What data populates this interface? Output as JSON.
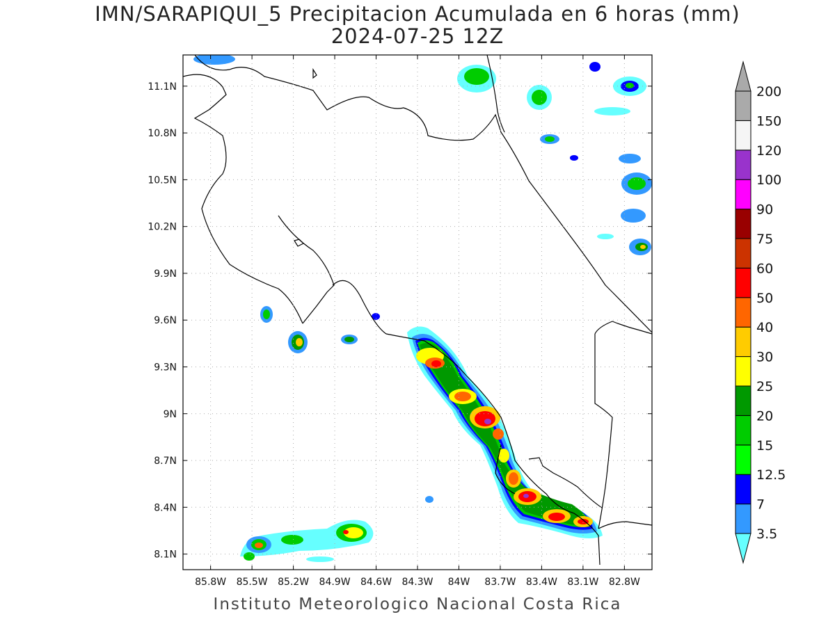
{
  "title": "IMN/SARAPIQUI_5 Precipitacion Acumulada en 6 horas (mm)",
  "subtitle": "2024-07-25 12Z",
  "credit": "Instituto Meteorologico Nacional Costa Rica",
  "map": {
    "lon_range": [
      -86.0,
      -82.6
    ],
    "lat_range": [
      8.0,
      11.3
    ],
    "lon_ticks": [
      {
        "value": -85.8,
        "label": "85.8W"
      },
      {
        "value": -85.5,
        "label": "85.5W"
      },
      {
        "value": -85.2,
        "label": "85.2W"
      },
      {
        "value": -84.9,
        "label": "84.9W"
      },
      {
        "value": -84.6,
        "label": "84.6W"
      },
      {
        "value": -84.3,
        "label": "84.3W"
      },
      {
        "value": -84.0,
        "label": "84W"
      },
      {
        "value": -83.7,
        "label": "83.7W"
      },
      {
        "value": -83.4,
        "label": "83.4W"
      },
      {
        "value": -83.1,
        "label": "83.1W"
      },
      {
        "value": -82.8,
        "label": "82.8W"
      }
    ],
    "lat_ticks": [
      {
        "value": 8.1,
        "label": "8.1N"
      },
      {
        "value": 8.4,
        "label": "8.4N"
      },
      {
        "value": 8.7,
        "label": "8.7N"
      },
      {
        "value": 9.0,
        "label": "9N"
      },
      {
        "value": 9.3,
        "label": "9.3N"
      },
      {
        "value": 9.6,
        "label": "9.6N"
      },
      {
        "value": 9.9,
        "label": "9.9N"
      },
      {
        "value": 10.2,
        "label": "10.2N"
      },
      {
        "value": 10.5,
        "label": "10.5N"
      },
      {
        "value": 10.8,
        "label": "10.8N"
      },
      {
        "value": 11.1,
        "label": "11.1N"
      }
    ],
    "grid": true
  },
  "colorbar": {
    "levels": [
      {
        "label": "3.5",
        "color": "#66ffff"
      },
      {
        "label": "7",
        "color": "#3399ff"
      },
      {
        "label": "12.5",
        "color": "#0000ff"
      },
      {
        "label": "15",
        "color": "#00ff00"
      },
      {
        "label": "20",
        "color": "#00cc00"
      },
      {
        "label": "25",
        "color": "#009900"
      },
      {
        "label": "30",
        "color": "#ffff00"
      },
      {
        "label": "40",
        "color": "#ffcc00"
      },
      {
        "label": "50",
        "color": "#ff6600"
      },
      {
        "label": "60",
        "color": "#ff0000"
      },
      {
        "label": "75",
        "color": "#cc3300"
      },
      {
        "label": "90",
        "color": "#990000"
      },
      {
        "label": "100",
        "color": "#ff00ff"
      },
      {
        "label": "120",
        "color": "#9933cc"
      },
      {
        "label": "150",
        "color": "#f5f5f5"
      },
      {
        "label": "200",
        "color": "#aaaaaa"
      }
    ]
  }
}
